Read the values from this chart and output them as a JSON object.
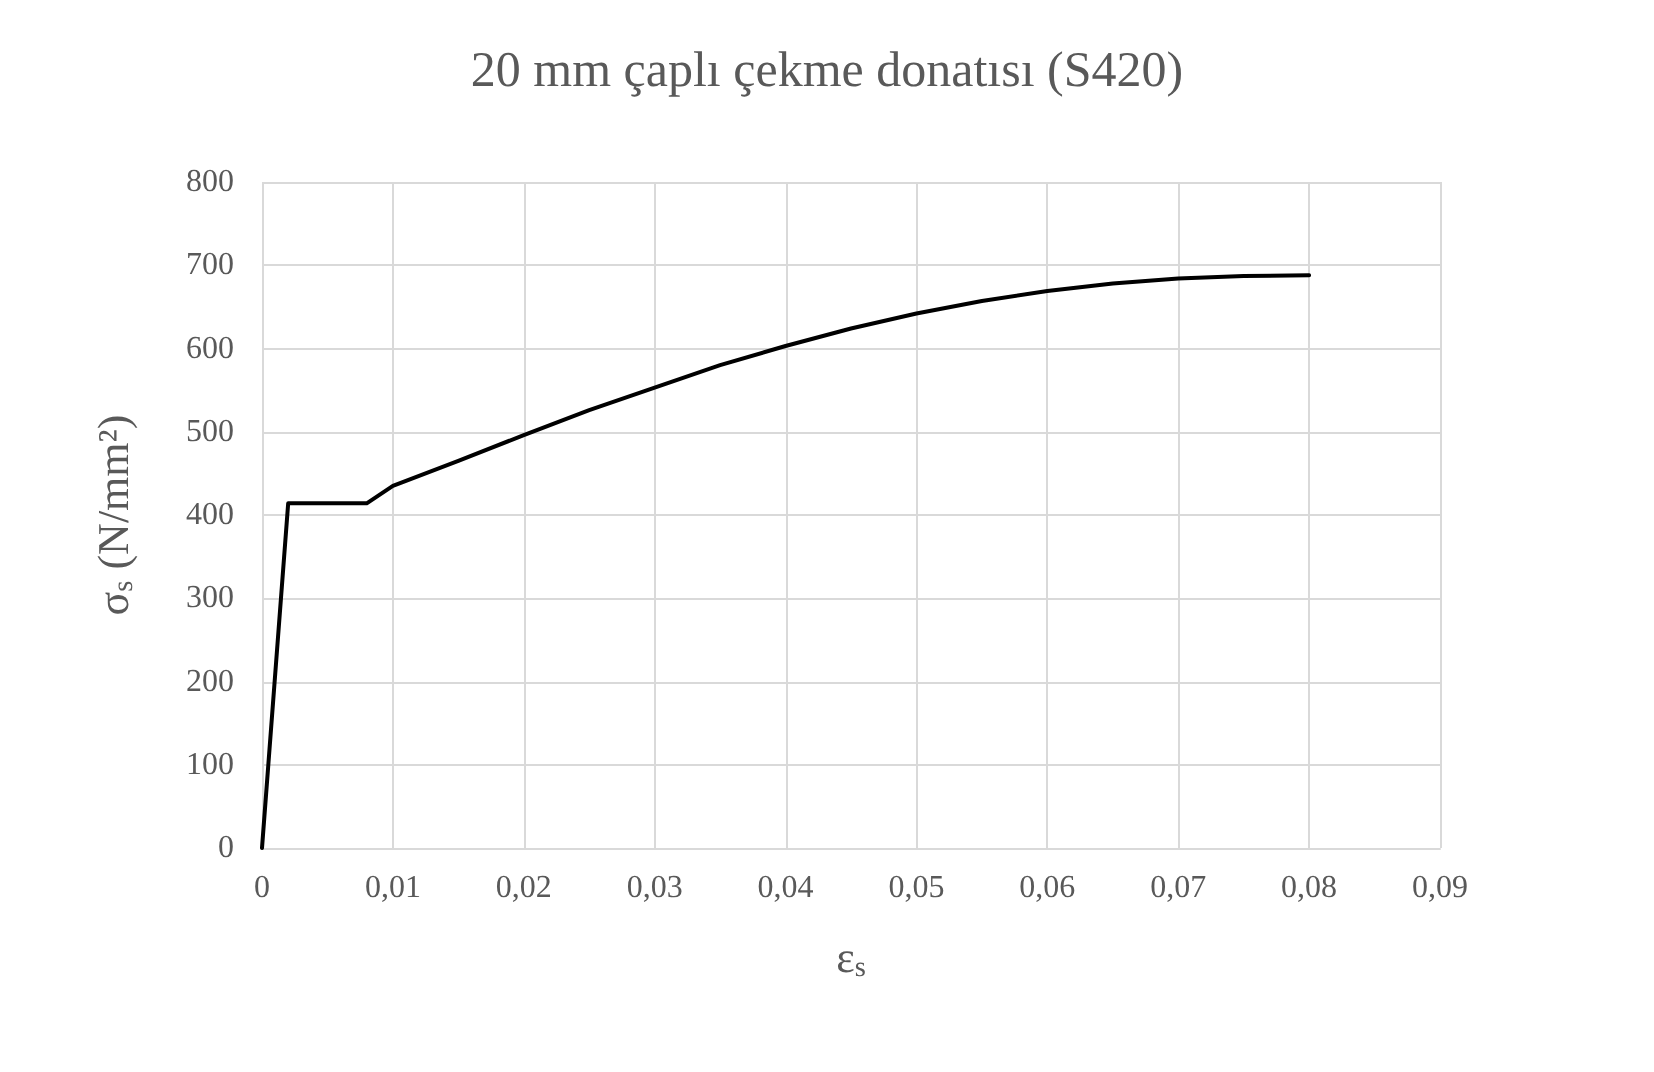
{
  "chart_data": {
    "type": "line",
    "title": "20 mm çaplı çekme donatısı (S420)",
    "xlabel": "ε$_{s}$",
    "ylabel": "σ$_{s}$ (N/mm²)",
    "series": [
      {
        "color": "#000000",
        "x": [
          0,
          0.002,
          0.008,
          0.01,
          0.015,
          0.02,
          0.025,
          0.03,
          0.035,
          0.04,
          0.045,
          0.05,
          0.055,
          0.06,
          0.065,
          0.07,
          0.075,
          0.08
        ],
        "values": [
          0,
          414,
          414,
          435,
          465,
          496,
          526,
          553,
          580,
          603,
          624,
          642,
          657,
          669,
          678,
          684,
          687,
          688
        ]
      }
    ],
    "xlim": [
      0,
      0.09
    ],
    "xticks": [
      0,
      {
        "value": 0.01,
        "label": "0,01"
      },
      {
        "value": 0.02,
        "label": "0,02"
      },
      {
        "value": 0.03,
        "label": "0,03"
      },
      {
        "value": 0.04,
        "label": "0,04"
      },
      {
        "value": 0.05,
        "label": "0,05"
      },
      {
        "value": 0.06,
        "label": "0,06"
      },
      {
        "value": 0.07,
        "label": "0,07"
      },
      {
        "value": 0.08,
        "label": "0,08"
      },
      {
        "value": 0.09,
        "label": "0,09"
      }
    ],
    "ylim": [
      0,
      800
    ],
    "yticks": [
      0,
      100,
      200,
      300,
      400,
      500,
      600,
      700,
      800
    ],
    "grid": true,
    "marker": "none",
    "line_style": "solid"
  }
}
